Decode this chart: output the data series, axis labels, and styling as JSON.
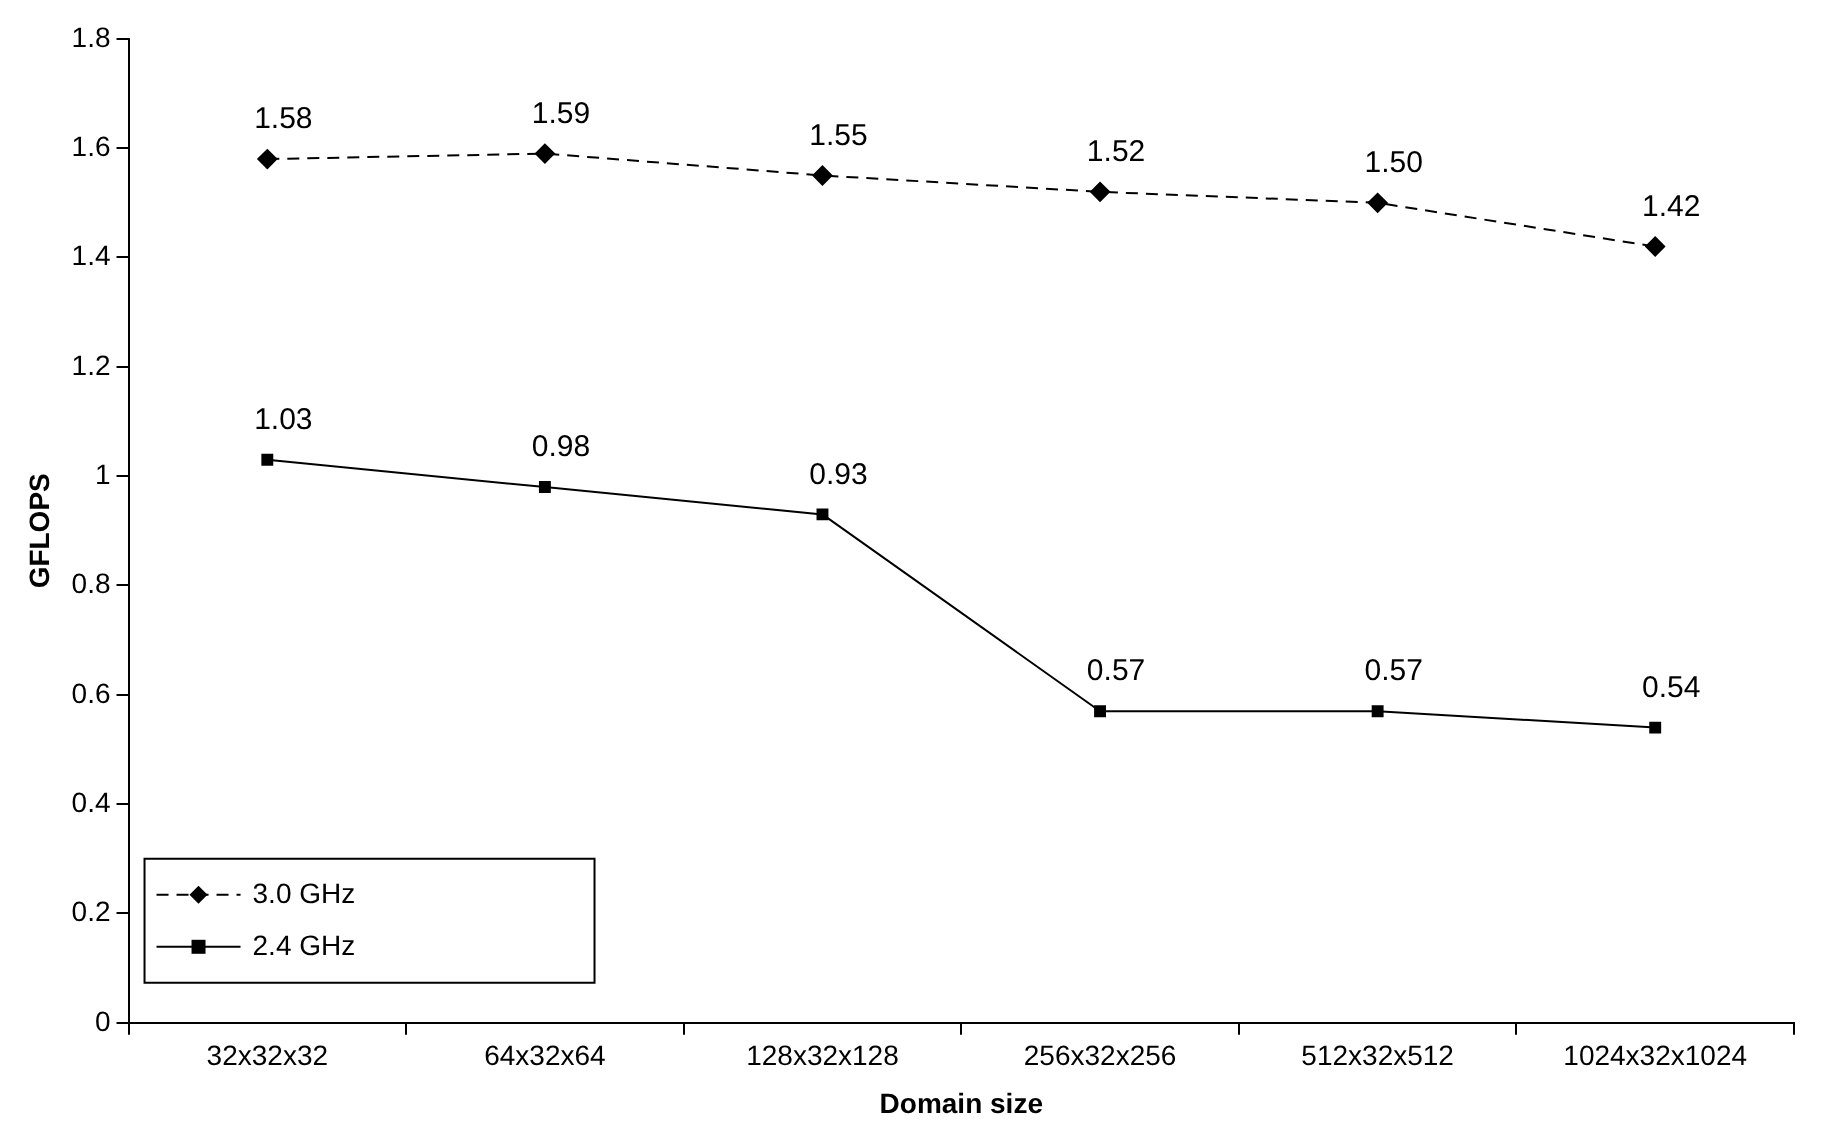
{
  "chart_data": {
    "type": "line",
    "xlabel": "Domain size",
    "ylabel": "GFLOPS",
    "categories": [
      "32x32x32",
      "64x32x64",
      "128x32x128",
      "256x32x256",
      "512x32x512",
      "1024x32x1024"
    ],
    "series": [
      {
        "name": "3.0 GHz",
        "color": "#000000",
        "values": [
          1.58,
          1.59,
          1.55,
          1.52,
          1.5,
          1.42
        ],
        "value_labels": [
          "1.58",
          "1.59",
          "1.55",
          "1.52",
          "1.50",
          "1.42"
        ],
        "marker": "diamond",
        "line_style": "dashed"
      },
      {
        "name": "2.4 GHz",
        "color": "#000000",
        "values": [
          1.03,
          0.98,
          0.93,
          0.57,
          0.57,
          0.54
        ],
        "value_labels": [
          "1.03",
          "0.98",
          "0.93",
          "0.57",
          "0.57",
          "0.54"
        ],
        "marker": "square",
        "line_style": "solid"
      }
    ],
    "ylim": [
      0,
      1.8
    ],
    "yticks": [
      0,
      0.2,
      0.4,
      0.6,
      0.8,
      1,
      1.2,
      1.4,
      1.6,
      1.8
    ],
    "grid": false,
    "legend": "bottom left"
  }
}
